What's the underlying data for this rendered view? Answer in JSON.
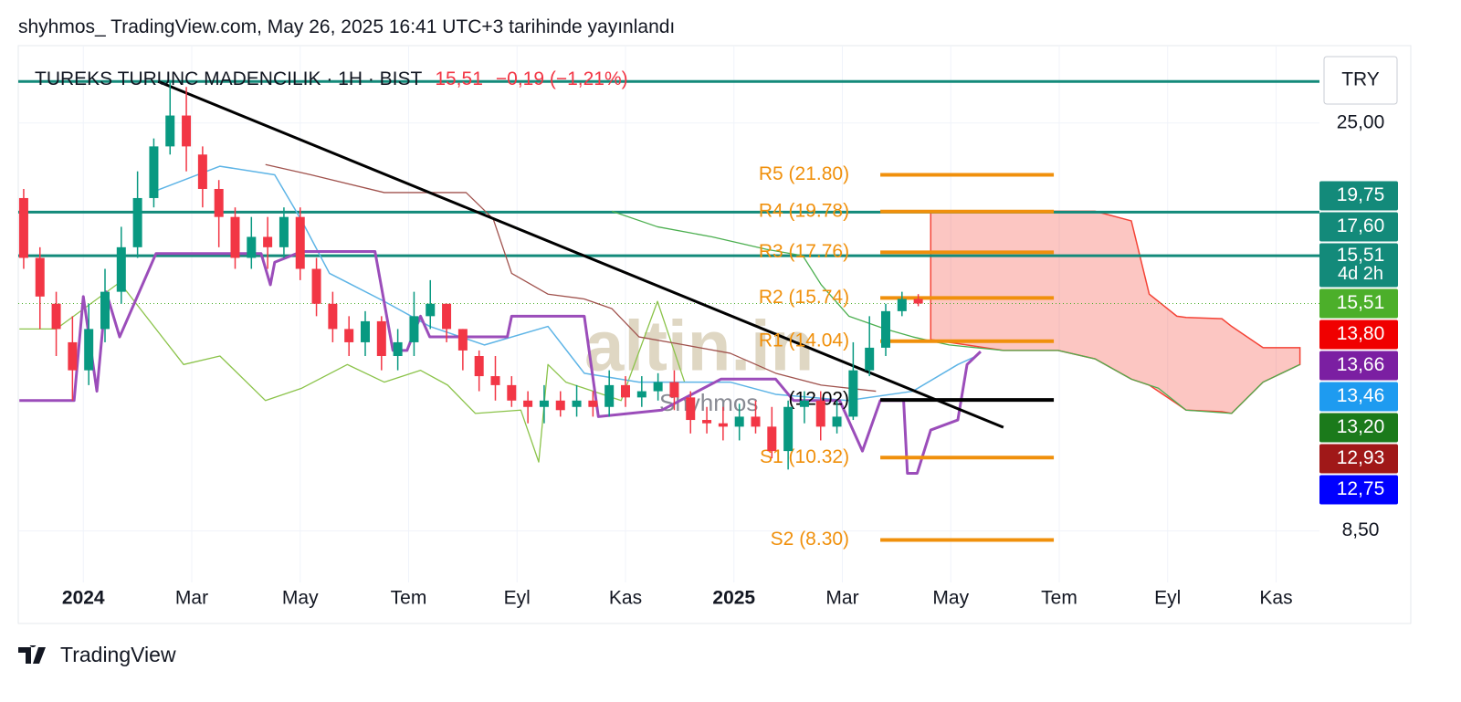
{
  "header": {
    "published": "shyhmos_ TradingView.com, May 26, 2025 16:41 UTC+3 tarihinde yayınlandı"
  },
  "footer": {
    "brand": "TradingView"
  },
  "chart_data": {
    "type": "candlestick",
    "title": "TUREKS TURUNC MADENCILIK · 1H · BIST",
    "price_text": "15,51",
    "change_text": "−0,19 (−1,21%)",
    "currency": "TRY",
    "watermark": "altin.in",
    "author_mark": "Shyhmos",
    "up_color": "#089981",
    "down_color": "#f23645",
    "log_scale": true,
    "grid": true,
    "xlim": [
      -1.2,
      22.8
    ],
    "xticks": [
      {
        "value": 0,
        "label": "2024",
        "bold": true
      },
      {
        "value": 2,
        "label": "Mar"
      },
      {
        "value": 4,
        "label": "May"
      },
      {
        "value": 6,
        "label": "Tem"
      },
      {
        "value": 8,
        "label": "Eyl"
      },
      {
        "value": 10,
        "label": "Kas"
      },
      {
        "value": 12,
        "label": "2025",
        "bold": true
      },
      {
        "value": 14,
        "label": "Mar"
      },
      {
        "value": 16,
        "label": "May"
      },
      {
        "value": 18,
        "label": "Tem"
      },
      {
        "value": 20,
        "label": "Eyl"
      },
      {
        "value": 22,
        "label": "Kas"
      }
    ],
    "ylim": [
      7.6,
      29.8
    ],
    "yticks": [
      {
        "value": 25,
        "label": "25,00"
      },
      {
        "value": 8.5,
        "label": "8,50"
      }
    ],
    "x": [
      -1.1,
      -0.8,
      -0.5,
      -0.2,
      0.1,
      0.4,
      0.7,
      1.0,
      1.3,
      1.6,
      1.9,
      2.2,
      2.5,
      2.8,
      3.1,
      3.4,
      3.7,
      4.0,
      4.3,
      4.6,
      4.9,
      5.2,
      5.5,
      5.8,
      6.1,
      6.4,
      6.7,
      7.0,
      7.3,
      7.6,
      7.9,
      8.2,
      8.5,
      8.8,
      9.1,
      9.4,
      9.7,
      10.0,
      10.3,
      10.6,
      10.9,
      11.2,
      11.5,
      11.8,
      12.1,
      12.4,
      12.7,
      13.0,
      13.3,
      13.6,
      13.9,
      14.2,
      14.5,
      14.8,
      15.1,
      15.4
    ],
    "open": [
      20.5,
      17.5,
      15.5,
      14,
      13,
      14.5,
      16,
      18,
      20.5,
      23.5,
      25.5,
      23,
      21,
      19.5,
      17.5,
      18.5,
      18,
      19.5,
      17,
      15.5,
      14.5,
      14,
      14.8,
      13.5,
      14,
      15,
      15.5,
      14.5,
      13.5,
      12.8,
      12.5,
      12,
      11.8,
      12,
      11.8,
      12,
      11.8,
      12.5,
      12.1,
      12.3,
      12.6,
      12.1,
      11.4,
      11.3,
      11.2,
      11.5,
      11.2,
      10.5,
      11.8,
      12,
      11.2,
      11.5,
      13,
      13.8,
      15.2,
      15.7
    ],
    "high": [
      21,
      18,
      16,
      15,
      15.5,
      17,
      19,
      22,
      24,
      28,
      27.5,
      23.5,
      21.5,
      20,
      19.5,
      19.5,
      20,
      20,
      17.5,
      16,
      15,
      15.2,
      15,
      14.5,
      16,
      16.5,
      15.5,
      14.5,
      13.7,
      13.5,
      12.8,
      12.3,
      12.5,
      12.3,
      12.5,
      12.3,
      13,
      12.8,
      12.8,
      12.9,
      13,
      12.3,
      11.8,
      11.8,
      11.9,
      12,
      11.8,
      12,
      12.3,
      12.3,
      12,
      14,
      15,
      15.5,
      16,
      15.9
    ],
    "low": [
      17,
      14.5,
      13.5,
      12,
      12.5,
      14,
      15.5,
      17.5,
      20,
      23,
      22,
      20,
      18,
      17,
      17,
      17,
      17.5,
      16.5,
      15,
      14,
      13.5,
      13.5,
      13,
      13,
      13.5,
      14.5,
      14,
      13,
      12.3,
      12,
      11.8,
      11.3,
      11.3,
      11.5,
      11.5,
      11.5,
      11.5,
      11.8,
      11.8,
      12,
      11.7,
      11,
      11,
      10.8,
      10.8,
      11,
      10.3,
      10,
      11.3,
      10.8,
      11,
      11.4,
      12.8,
      13.5,
      15,
      15.4
    ],
    "close": [
      17.5,
      15.8,
      14.5,
      13,
      14.5,
      16,
      18,
      20.5,
      23.5,
      25.5,
      23.5,
      21,
      19.5,
      17.5,
      18.5,
      18,
      19.5,
      17,
      15.5,
      14.5,
      14,
      14.8,
      13.5,
      14,
      15,
      15.5,
      14.5,
      13.7,
      12.8,
      12.5,
      12,
      11.8,
      12,
      11.7,
      12,
      11.8,
      12.5,
      12.1,
      12.3,
      12.6,
      12.1,
      11.4,
      11.3,
      11.2,
      11.5,
      11.2,
      10.5,
      11.8,
      12,
      11.2,
      11.5,
      13,
      13.8,
      15.2,
      15.7,
      15.51
    ],
    "last_line": {
      "value": 15.51,
      "color": "#4caf2a"
    },
    "hlines": [
      {
        "value": 27.9,
        "color": "#138a7a"
      },
      {
        "value": 19.75,
        "color": "#138a7a"
      },
      {
        "value": 17.6,
        "color": "#138a7a"
      }
    ],
    "cloud": {
      "color": "#f44336",
      "x": [
        15.63,
        16.97,
        17.98,
        18.66,
        19.33,
        19.66,
        20.17,
        20.34,
        21.0,
        21.18,
        21.76,
        22.44
      ],
      "upper": [
        19.8,
        19.8,
        19.8,
        19.8,
        19.3,
        15.9,
        15.0,
        14.95,
        14.9,
        14.6,
        13.8,
        13.8
      ],
      "lower": [
        14.1,
        13.7,
        13.7,
        13.4,
        12.7,
        12.5,
        11.9,
        11.7,
        11.65,
        11.6,
        12.6,
        13.2
      ]
    },
    "overlays": [
      {
        "color": "#8bc34a",
        "width": 1.3,
        "x": [
          -1.18,
          -0.5,
          0.67,
          1.85,
          2.52,
          3.36,
          4.03,
          4.87,
          5.55,
          6.22,
          6.72,
          7.23,
          8.07,
          8.4,
          8.57,
          8.9,
          9.92,
          10.59,
          11.09
        ],
        "values": [
          14.5,
          14.5,
          16.4,
          13.2,
          13.5,
          12.0,
          12.4,
          13.2,
          12.6,
          13.0,
          12.5,
          11.6,
          11.7,
          10.2,
          13.2,
          12.6,
          12.0,
          15.6,
          12.6
        ]
      },
      {
        "color": "#4caf50",
        "width": 1.3,
        "x": [
          9.75,
          10.59,
          11.6,
          12.6,
          13.27,
          13.61,
          14.12,
          14.79,
          15.3,
          15.97,
          16.97,
          17.98,
          18.66,
          19.33,
          19.83,
          20.34,
          21.18,
          21.76,
          22.44
        ],
        "values": [
          19.8,
          19.0,
          18.5,
          17.9,
          17.6,
          16.3,
          15.0,
          14.5,
          14.2,
          13.9,
          13.7,
          13.7,
          13.4,
          12.7,
          12.4,
          11.7,
          11.6,
          12.6,
          13.2
        ]
      },
      {
        "color": "#a0524d",
        "width": 1.3,
        "x": [
          3.36,
          4.2,
          5.55,
          6.05,
          7.06,
          7.56,
          7.9,
          8.57,
          9.24,
          9.75,
          10.25,
          11.09,
          11.93,
          12.77,
          13.61,
          14.62
        ],
        "values": [
          22.4,
          21.8,
          20.8,
          20.8,
          20.8,
          19.4,
          16.8,
          15.9,
          15.7,
          15.3,
          14.2,
          13.9,
          13.6,
          12.9,
          12.5,
          12.3
        ]
      },
      {
        "color": "#5db4e6",
        "width": 1.5,
        "x": [
          1.34,
          2.52,
          3.53,
          4.03,
          4.54,
          5.55,
          6.39,
          7.4,
          8.57,
          9.24,
          10.25,
          11.93,
          12.77,
          14.1,
          15.3,
          16.13,
          16.47
        ],
        "values": [
          20.9,
          22.3,
          21.8,
          19.3,
          16.8,
          15.6,
          14.6,
          13.9,
          14.6,
          12.9,
          12.6,
          12.6,
          12.2,
          12.0,
          12.3,
          13.2,
          13.5
        ]
      },
      {
        "color": "#9b4dba",
        "width": 3,
        "x": [
          -1.18,
          -0.17,
          0,
          0.25,
          0.42,
          0.67,
          1.34,
          2.69,
          3.28,
          3.45,
          3.53,
          4.03,
          5.38,
          5.71,
          5.97,
          6.22,
          6.39,
          7.82,
          7.9,
          9.24,
          9.5,
          10.67,
          11.76,
          12.77,
          13.1,
          13.95,
          14.37,
          14.7,
          15.13,
          15.2,
          15.38,
          15.63,
          16.13,
          16.3,
          16.55
        ],
        "values": [
          12.0,
          12.0,
          15.8,
          12.3,
          16.0,
          14.2,
          17.7,
          17.7,
          17.7,
          16.3,
          17.3,
          17.8,
          17.8,
          13.7,
          13.7,
          15.0,
          14.2,
          14.2,
          15.0,
          15.0,
          11.5,
          11.7,
          12.7,
          12.7,
          12.0,
          12.0,
          10.5,
          12.0,
          12.0,
          9.9,
          9.9,
          11.1,
          11.4,
          13.2,
          13.66
        ]
      },
      {
        "color": "#000000",
        "width": 3,
        "x": [
          1.38,
          16.97
        ],
        "values": [
          27.9,
          11.18
        ]
      }
    ],
    "pivot_x": [
      14.7,
      17.9
    ],
    "pivots": [
      {
        "label": "R5 (21.80)",
        "value": 21.8,
        "color": "#f0900c"
      },
      {
        "label": "R4 (19.78)",
        "value": 19.78,
        "color": "#f0900c"
      },
      {
        "label": "R3 (17.76)",
        "value": 17.76,
        "color": "#f0900c"
      },
      {
        "label": "R2 (15.74)",
        "value": 15.74,
        "color": "#f0900c"
      },
      {
        "label": "R1 (14.04)",
        "value": 14.04,
        "color": "#f0900c"
      },
      {
        "label": "(12.02)",
        "value": 12.02,
        "color": "#000000"
      },
      {
        "label": "S1 (10.32)",
        "value": 10.32,
        "color": "#f0900c"
      },
      {
        "label": "S2 (8.30)",
        "value": 8.3,
        "color": "#f0900c"
      }
    ],
    "price_badges": [
      {
        "label": "19,75",
        "value": 19.75,
        "color": "#138a7a"
      },
      {
        "label": "17,60",
        "value": 17.6,
        "color": "#138a7a"
      },
      {
        "label": "15,51",
        "value": 15.51,
        "color": "#138a7a",
        "sub": "4d 2h"
      },
      {
        "label": "15,51",
        "value": 15.51,
        "color": "#4caf2a",
        "anchor": true
      },
      {
        "label": "13,80",
        "value": 13.8,
        "color": "#f00000"
      },
      {
        "label": "13,66",
        "value": 13.66,
        "color": "#7b1fa2"
      },
      {
        "label": "13,46",
        "value": 13.46,
        "color": "#1e9bf0"
      },
      {
        "label": "13,20",
        "value": 13.2,
        "color": "#1b7a1b"
      },
      {
        "label": "12,93",
        "value": 12.93,
        "color": "#a01818"
      },
      {
        "label": "12,75",
        "value": 12.75,
        "color": "#0000ff"
      }
    ]
  }
}
